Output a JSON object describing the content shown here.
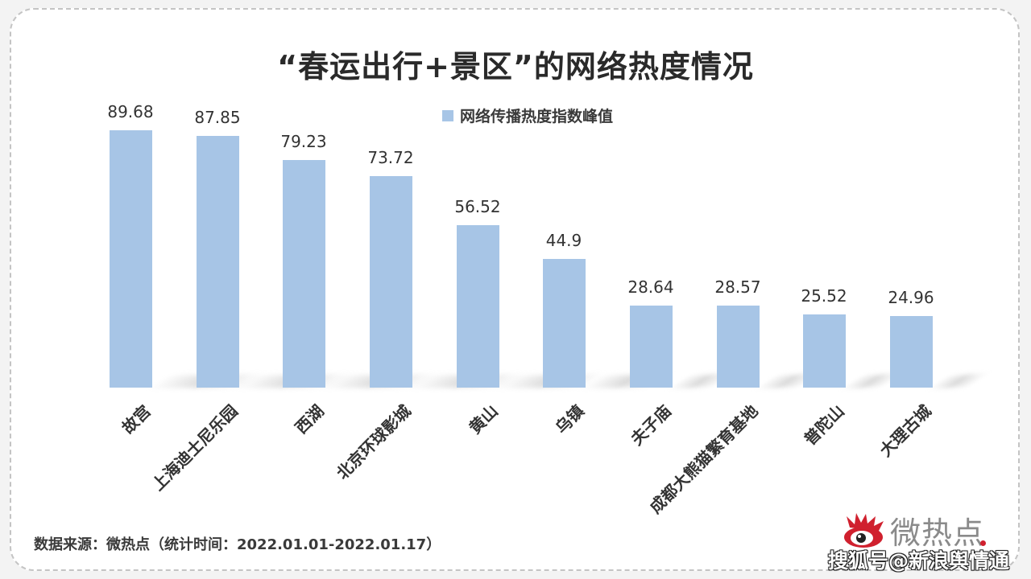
{
  "title": "“春运出行+景区”的网络热度情况",
  "legend": {
    "label": "网络传播热度指数峰值",
    "color": "#a7c5e6"
  },
  "source": "数据来源：微热点（统计时间：2022.01.01-2022.01.17）",
  "brand": {
    "name": "微热点",
    "accent": "#d0202e"
  },
  "watermark": "搜狐号@新浪舆情通",
  "bars": [
    {
      "label": "故宫",
      "value": "89.68"
    },
    {
      "label": "上海迪士尼乐园",
      "value": "87.85"
    },
    {
      "label": "西湖",
      "value": "79.23"
    },
    {
      "label": "北京环球影城",
      "value": "73.72"
    },
    {
      "label": "黄山",
      "value": "56.52"
    },
    {
      "label": "乌镇",
      "value": "44.9"
    },
    {
      "label": "夫子庙",
      "value": "28.64"
    },
    {
      "label": "成都大熊猫繁育基地",
      "value": "28.57"
    },
    {
      "label": "普陀山",
      "value": "25.52"
    },
    {
      "label": "大理古城",
      "value": "24.96"
    }
  ],
  "chart_data": {
    "type": "bar",
    "title": "“春运出行+景区”的网络热度情况",
    "categories": [
      "故宫",
      "上海迪士尼乐园",
      "西湖",
      "北京环球影城",
      "黄山",
      "乌镇",
      "夫子庙",
      "成都大熊猫繁育基地",
      "普陀山",
      "大理古城"
    ],
    "series": [
      {
        "name": "网络传播热度指数峰值",
        "values": [
          89.68,
          87.85,
          79.23,
          73.72,
          56.52,
          44.9,
          28.64,
          28.57,
          25.52,
          24.96
        ],
        "color": "#a7c5e6"
      }
    ],
    "xlabel": "",
    "ylabel": "",
    "grid": false,
    "legend_position": "top",
    "data_labels": true,
    "note": "数据来源：微热点（统计时间：2022.01.01-2022.01.17）"
  }
}
